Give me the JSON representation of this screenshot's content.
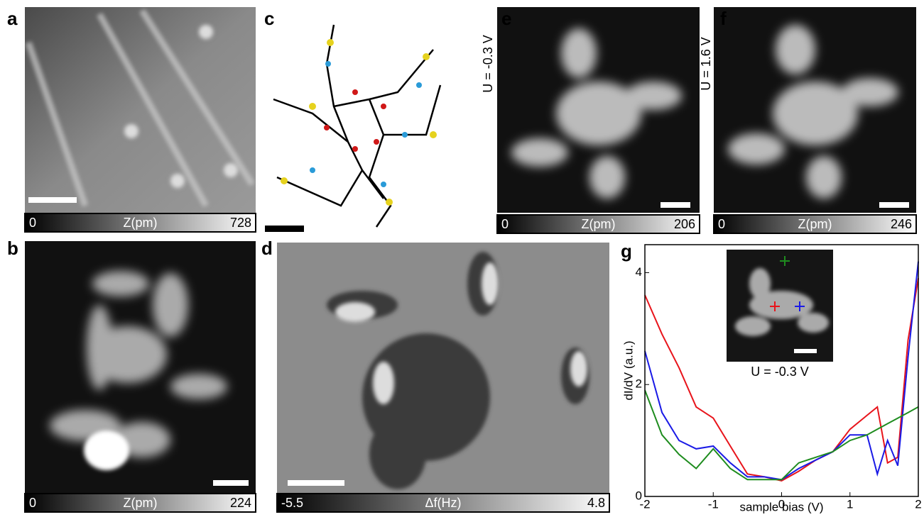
{
  "panels": [
    {
      "label": "a",
      "colorbar": {
        "min": "0",
        "title": "Z(pm)",
        "max": "728"
      }
    },
    {
      "label": "b",
      "colorbar": {
        "min": "0",
        "title": "Z(pm)",
        "max": "224"
      }
    },
    {
      "label": "c"
    },
    {
      "label": "d",
      "colorbar": {
        "min": "-5.5",
        "title": "Δf(Hz)",
        "max": "4.8"
      }
    },
    {
      "label": "e",
      "bias": "U = -0.3 V",
      "colorbar": {
        "min": "0",
        "title": "Z(pm)",
        "max": "206"
      }
    },
    {
      "label": "f",
      "bias": "U = 1.6 V",
      "colorbar": {
        "min": "0",
        "title": "Z(pm)",
        "max": "246"
      }
    },
    {
      "label": "g",
      "inset_bias": "U = -0.3 V"
    }
  ],
  "chart_data": {
    "type": "line",
    "x_label": "sample bias (V)",
    "y_label": "dI/dV (a.u.)",
    "x": [
      -2,
      -1.75,
      -1.5,
      -1.25,
      -1,
      -0.75,
      -0.5,
      -0.25,
      0,
      0.25,
      0.5,
      0.75,
      1,
      1.25,
      1.4,
      1.55,
      1.7,
      1.85,
      2
    ],
    "series": [
      {
        "color": "#e8141b",
        "values": [
          3.6,
          2.9,
          2.3,
          1.6,
          1.4,
          0.9,
          0.4,
          0.35,
          0.28,
          0.45,
          0.65,
          0.8,
          1.2,
          1.45,
          1.6,
          0.6,
          0.7,
          2.8,
          3.9
        ]
      },
      {
        "color": "#1a1ae6",
        "values": [
          2.6,
          1.5,
          1.0,
          0.85,
          0.9,
          0.6,
          0.35,
          0.35,
          0.3,
          0.5,
          0.65,
          0.8,
          1.1,
          1.1,
          0.4,
          1.0,
          0.55,
          2.5,
          4.2
        ]
      },
      {
        "color": "#1e8c1e",
        "values": [
          1.9,
          1.1,
          0.75,
          0.5,
          0.85,
          0.5,
          0.3,
          0.3,
          0.3,
          0.6,
          0.7,
          0.8,
          1.0,
          1.1,
          1.2,
          1.3,
          1.4,
          1.5,
          1.6
        ]
      }
    ],
    "xlim": [
      -2,
      2
    ],
    "ylim": [
      0,
      4.5
    ],
    "xticks": [
      -2,
      -1,
      0,
      1,
      2
    ],
    "yticks": [
      0,
      2,
      4
    ]
  }
}
